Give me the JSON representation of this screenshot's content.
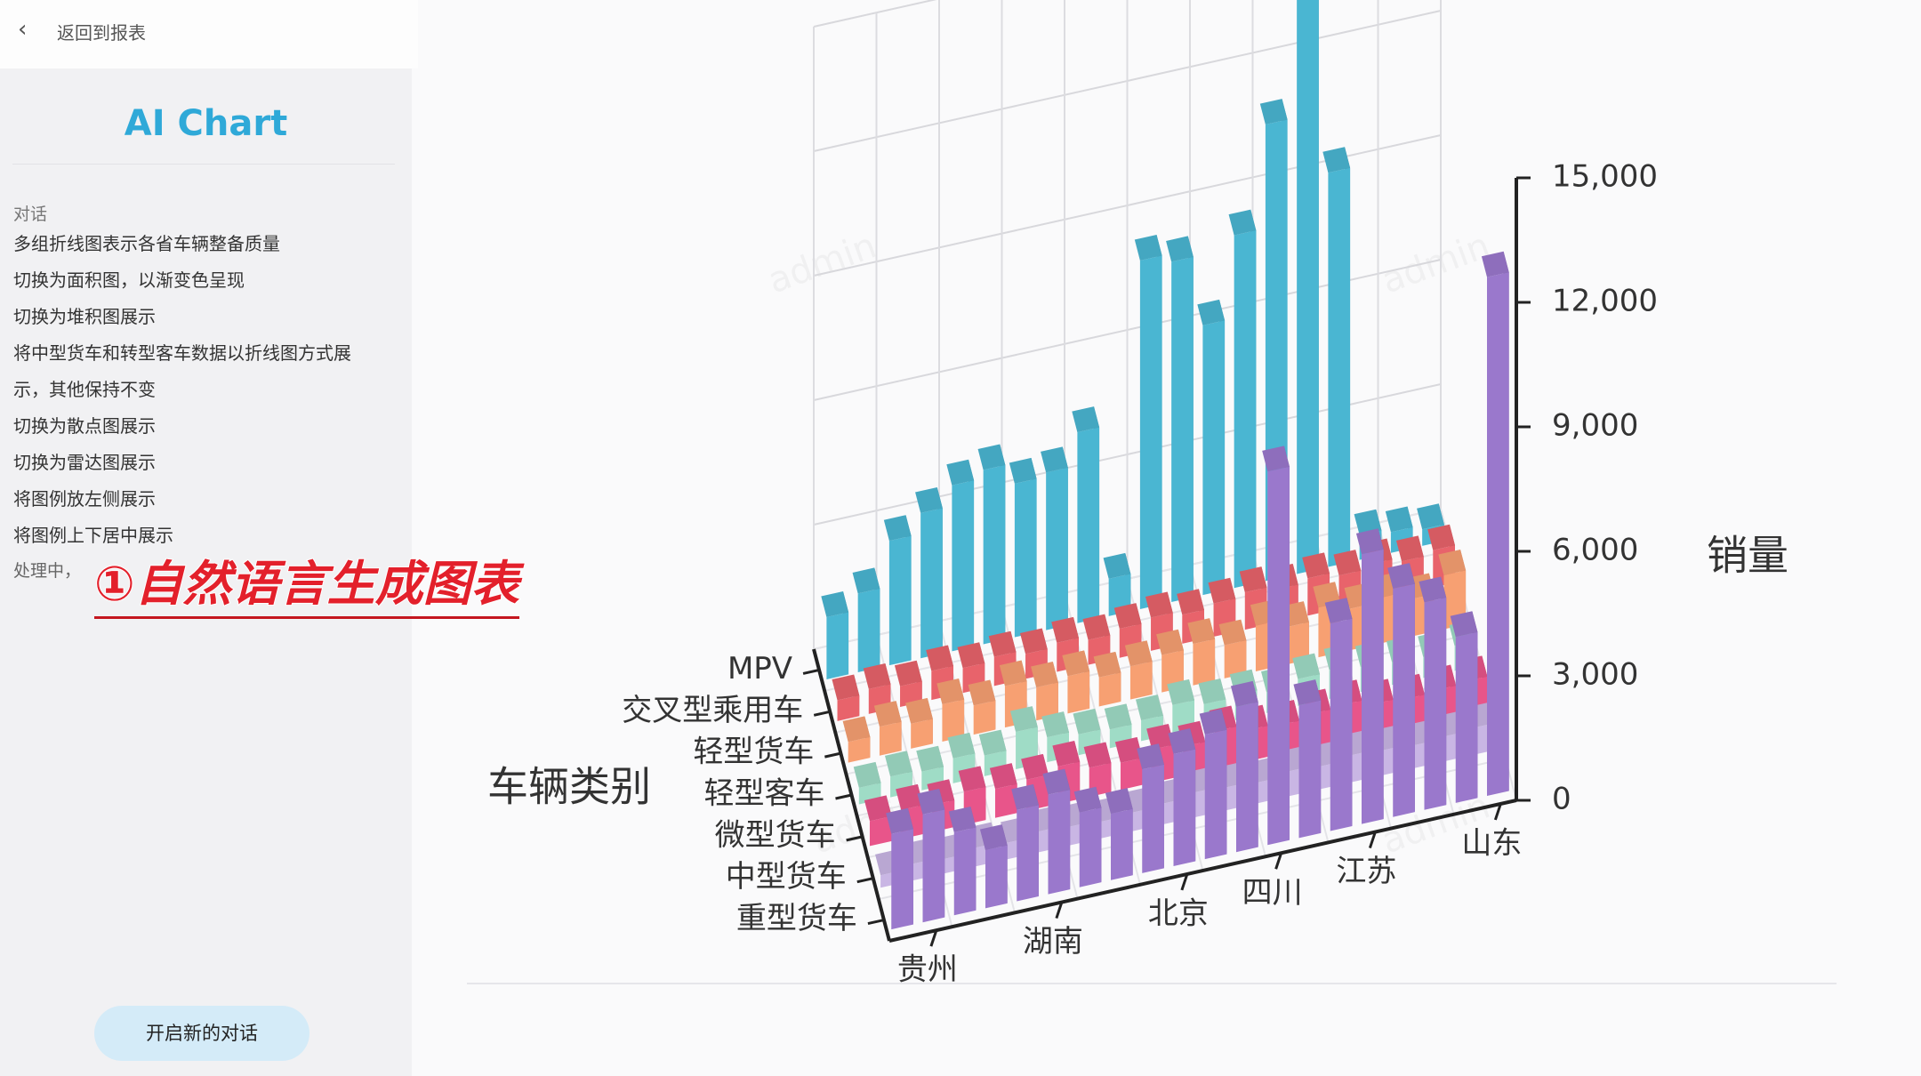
{
  "header": {
    "back": "返回到报表"
  },
  "sidebar": {
    "title": "AI Chart",
    "section": "对话",
    "items": [
      "多组折线图表示各省车辆整备质量",
      "切换为面积图，以渐变色呈现",
      "切换为堆积图展示",
      "将中型货车和转型客车数据以折线图方式展示，其他保持不变",
      "切换为散点图展示",
      "切换为雷达图展示",
      "将图例放左侧展示",
      "将图例上下居中展示"
    ],
    "status": "处理中，",
    "button": "开启新的对话"
  },
  "annotation": "①自然语言生成图表",
  "watermark": "admin",
  "chart_data": {
    "type": "bar3d",
    "xlabel": "车辆类别",
    "ylabel": "销量",
    "categories": [
      null,
      "贵州",
      null,
      null,
      null,
      "湖南",
      null,
      null,
      null,
      "北京",
      null,
      null,
      "四川",
      null,
      null,
      "江苏",
      null,
      null,
      null,
      "山东"
    ],
    "series": [
      {
        "name": "MPV",
        "color": "#4ab6d2",
        "values": [
          1500,
          1900,
          3000,
          3500,
          4000,
          4200,
          3700,
          3800,
          4600,
          900,
          8400,
          8200,
          6500,
          8500,
          11000,
          14500,
          9500,
          600,
          500,
          400
        ]
      },
      {
        "name": "交叉型乘用车",
        "color": "#e8636b",
        "values": [
          500,
          600,
          500,
          700,
          600,
          700,
          600,
          700,
          600,
          700,
          800,
          700,
          800,
          900,
          800,
          900,
          800,
          900,
          800,
          900
        ]
      },
      {
        "name": "轻型货车",
        "color": "#f7a072",
        "values": [
          500,
          700,
          600,
          900,
          700,
          1000,
          800,
          900,
          700,
          800,
          900,
          1000,
          800,
          1100,
          900,
          1200,
          1000,
          1100,
          900,
          1300
        ]
      },
      {
        "name": "轻型客车",
        "color": "#9fdcc6",
        "values": [
          400,
          500,
          450,
          600,
          500,
          900,
          600,
          500,
          450,
          500,
          700,
          550,
          600,
          500,
          650,
          700,
          600,
          550,
          500,
          600
        ]
      },
      {
        "name": "微型货车",
        "color": "#e8558a",
        "values": [
          600,
          700,
          650,
          800,
          700,
          750,
          900,
          700,
          650,
          800,
          700,
          900,
          750,
          700,
          800,
          850,
          700,
          650,
          700,
          750
        ]
      },
      {
        "name": "中型货车",
        "color": "#c9b6e4",
        "values": [
          300,
          400,
          350,
          450,
          400,
          500,
          450,
          400,
          450,
          500,
          600,
          550,
          500,
          600,
          550,
          650,
          600,
          550,
          600,
          650
        ]
      },
      {
        "name": "重型货车",
        "color": "#9a78cc",
        "values": [
          2300,
          2600,
          2000,
          1400,
          2200,
          2400,
          1800,
          1600,
          2500,
          2700,
          3000,
          3500,
          9000,
          3200,
          5000,
          6500,
          5500,
          5000,
          4000,
          12500
        ]
      }
    ],
    "ylim": [
      0,
      15000
    ],
    "yticks": [
      0,
      {
        "value": 3000,
        "label": "3,000"
      },
      {
        "value": 6000,
        "label": "6,000"
      },
      {
        "value": 9000,
        "label": "9,000"
      },
      {
        "value": 12000,
        "label": "12,000"
      },
      {
        "value": 15000,
        "label": "15,000"
      }
    ],
    "grid": true
  }
}
